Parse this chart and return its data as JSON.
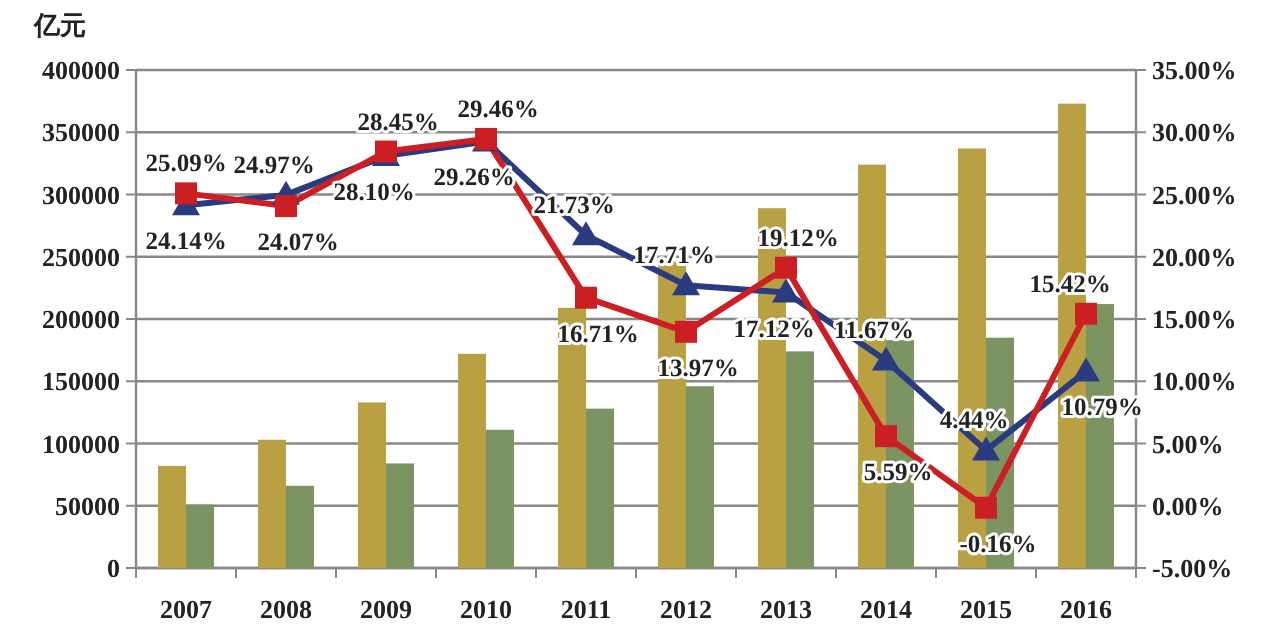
{
  "chart_data": {
    "type": "bar",
    "ylabel": "亿元",
    "categories": [
      "2007",
      "2008",
      "2009",
      "2010",
      "2011",
      "2012",
      "2013",
      "2014",
      "2015",
      "2016"
    ],
    "series": [
      {
        "color": "#b9a042",
        "values": [
          82000,
          103000,
          133000,
          172000,
          209000,
          246000,
          289000,
          324000,
          337000,
          373000
        ]
      },
      {
        "color": "#7b9462",
        "values": [
          51000,
          66000,
          84000,
          111000,
          128000,
          146000,
          174000,
          183000,
          185000,
          212000
        ]
      },
      {
        "type": "line",
        "axis": "y2",
        "color": "#2b3b80",
        "marker": "triangle",
        "values": [
          24.14,
          24.97,
          28.1,
          29.26,
          21.73,
          17.71,
          17.12,
          11.67,
          4.44,
          10.79
        ],
        "value_labels": [
          "24.14%",
          "24.97%",
          "28.10%",
          "29.26%",
          "21.73%",
          "17.71%",
          "17.12%",
          "11.67%",
          "4.44%",
          "10.79%"
        ]
      },
      {
        "type": "line",
        "axis": "y2",
        "color": "#cc1f24",
        "marker": "square",
        "values": [
          25.09,
          24.07,
          28.45,
          29.46,
          16.71,
          13.97,
          19.12,
          5.59,
          -0.16,
          15.42
        ],
        "value_labels": [
          "25.09%",
          "24.07%",
          "28.45%",
          "29.46%",
          "16.71%",
          "13.97%",
          "19.12%",
          "5.59%",
          "-0.16%",
          "15.42%"
        ]
      }
    ],
    "ylim": [
      0,
      400000
    ],
    "yticks": [
      0,
      50000,
      100000,
      150000,
      200000,
      250000,
      300000,
      350000,
      400000
    ],
    "y2lim": [
      -5,
      35
    ],
    "y2ticks": [
      {
        "value": -5,
        "label": "-5.00%"
      },
      {
        "value": 0,
        "label": "0.00%"
      },
      {
        "value": 5,
        "label": "5.00%"
      },
      {
        "value": 10,
        "label": "10.00%"
      },
      {
        "value": 15,
        "label": "15.00%"
      },
      {
        "value": 20,
        "label": "20.00%"
      },
      {
        "value": 25,
        "label": "25.00%"
      },
      {
        "value": 30,
        "label": "30.00%"
      },
      {
        "value": 35,
        "label": "35.00%"
      }
    ],
    "grid": "y"
  }
}
